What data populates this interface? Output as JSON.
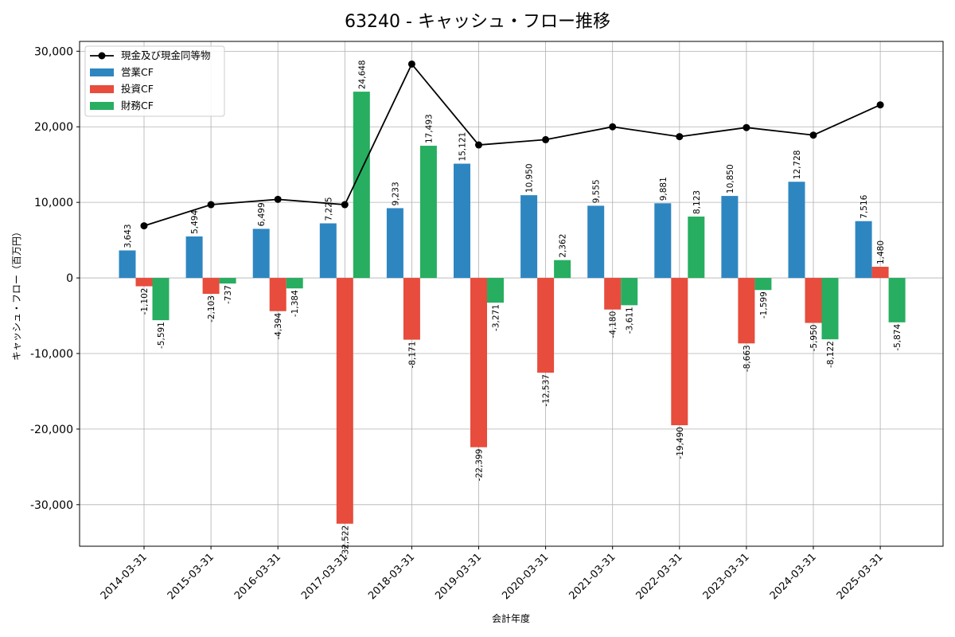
{
  "chart_data": {
    "type": "bar",
    "title": "63240 - キャッシュ・フロー推移",
    "xlabel": "会計年度",
    "ylabel": "キャッシュ・フロー（百万円）",
    "ylim": [
      -35500,
      31300
    ],
    "yticks": [
      -30000,
      -20000,
      -10000,
      0,
      10000,
      20000,
      30000
    ],
    "ytick_labels": [
      "-30,000",
      "-20,000",
      "-10,000",
      "0",
      "10,000",
      "20,000",
      "30,000"
    ],
    "grid": true,
    "legend_position": "top-left",
    "categories": [
      "2014-03-31",
      "2015-03-31",
      "2016-03-31",
      "2017-03-31",
      "2018-03-31",
      "2019-03-31",
      "2020-03-31",
      "2021-03-31",
      "2022-03-31",
      "2023-03-31",
      "2024-03-31",
      "2025-03-31"
    ],
    "series": [
      {
        "name": "営業CF",
        "kind": "bar",
        "color": "#2e86c1",
        "values": [
          3643,
          5494,
          6499,
          7225,
          9233,
          15121,
          10950,
          9555,
          9881,
          10850,
          12728,
          7516
        ],
        "labels": [
          "3,643",
          "5,494",
          "6,499",
          "7,225",
          "9,233",
          "15,121",
          "10,950",
          "9,555",
          "9,881",
          "10,850",
          "12,728",
          "7,516"
        ]
      },
      {
        "name": "投資CF",
        "kind": "bar",
        "color": "#e74c3c",
        "values": [
          -1102,
          -2103,
          -4394,
          -32522,
          -8171,
          -22399,
          -12537,
          -4180,
          -19490,
          -8663,
          -5950,
          1480
        ],
        "labels": [
          "-1,102",
          "-2,103",
          "-4,394",
          "-32,522",
          "-8,171",
          "-22,399",
          "-12,537",
          "-4,180",
          "-19,490",
          "-8,663",
          "-5,950",
          "1,480"
        ]
      },
      {
        "name": "財務CF",
        "kind": "bar",
        "color": "#27ae60",
        "values": [
          -5591,
          -737,
          -1384,
          24648,
          17493,
          -3271,
          2362,
          -3611,
          8123,
          -1599,
          -8122,
          -5874
        ],
        "labels": [
          "-5,591",
          "-737",
          "-1,384",
          "24,648",
          "17,493",
          "-3,271",
          "2,362",
          "-3,611",
          "8,123",
          "-1,599",
          "-8,122",
          "-5,874"
        ]
      },
      {
        "name": "現金及び現金同等物",
        "kind": "line",
        "color": "#000000",
        "values": [
          6900,
          9700,
          10400,
          9700,
          28300,
          17600,
          18300,
          20000,
          18700,
          19900,
          18900,
          22900
        ]
      }
    ]
  }
}
